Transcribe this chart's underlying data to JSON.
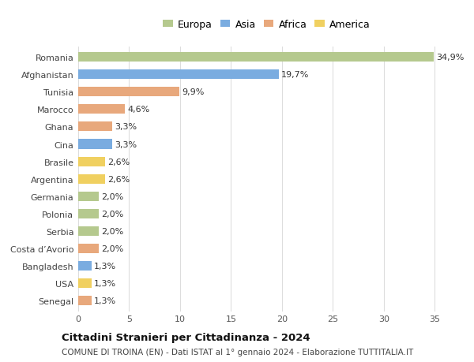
{
  "countries": [
    "Romania",
    "Afghanistan",
    "Tunisia",
    "Marocco",
    "Ghana",
    "Cina",
    "Brasile",
    "Argentina",
    "Germania",
    "Polonia",
    "Serbia",
    "Costa d’Avorio",
    "Bangladesh",
    "USA",
    "Senegal"
  ],
  "values": [
    34.9,
    19.7,
    9.9,
    4.6,
    3.3,
    3.3,
    2.6,
    2.6,
    2.0,
    2.0,
    2.0,
    2.0,
    1.3,
    1.3,
    1.3
  ],
  "labels": [
    "34,9%",
    "19,7%",
    "9,9%",
    "4,6%",
    "3,3%",
    "3,3%",
    "2,6%",
    "2,6%",
    "2,0%",
    "2,0%",
    "2,0%",
    "2,0%",
    "1,3%",
    "1,3%",
    "1,3%"
  ],
  "continents": [
    "Europa",
    "Asia",
    "Africa",
    "Africa",
    "Africa",
    "Asia",
    "America",
    "America",
    "Europa",
    "Europa",
    "Europa",
    "Africa",
    "Asia",
    "America",
    "Africa"
  ],
  "continent_colors": {
    "Europa": "#b5c98e",
    "Asia": "#7aace0",
    "Africa": "#e8a87c",
    "America": "#f0d060"
  },
  "legend_order": [
    "Europa",
    "Asia",
    "Africa",
    "America"
  ],
  "title": "Cittadini Stranieri per Cittadinanza - 2024",
  "subtitle": "COMUNE DI TROINA (EN) - Dati ISTAT al 1° gennaio 2024 - Elaborazione TUTTITALIA.IT",
  "xlim": [
    0,
    37
  ],
  "xticks": [
    0,
    5,
    10,
    15,
    20,
    25,
    30,
    35
  ],
  "bg_color": "#ffffff",
  "plot_bg_color": "#ffffff",
  "grid_color": "#dddddd",
  "bar_height": 0.55,
  "label_fontsize": 8,
  "ytick_fontsize": 8,
  "xtick_fontsize": 8
}
